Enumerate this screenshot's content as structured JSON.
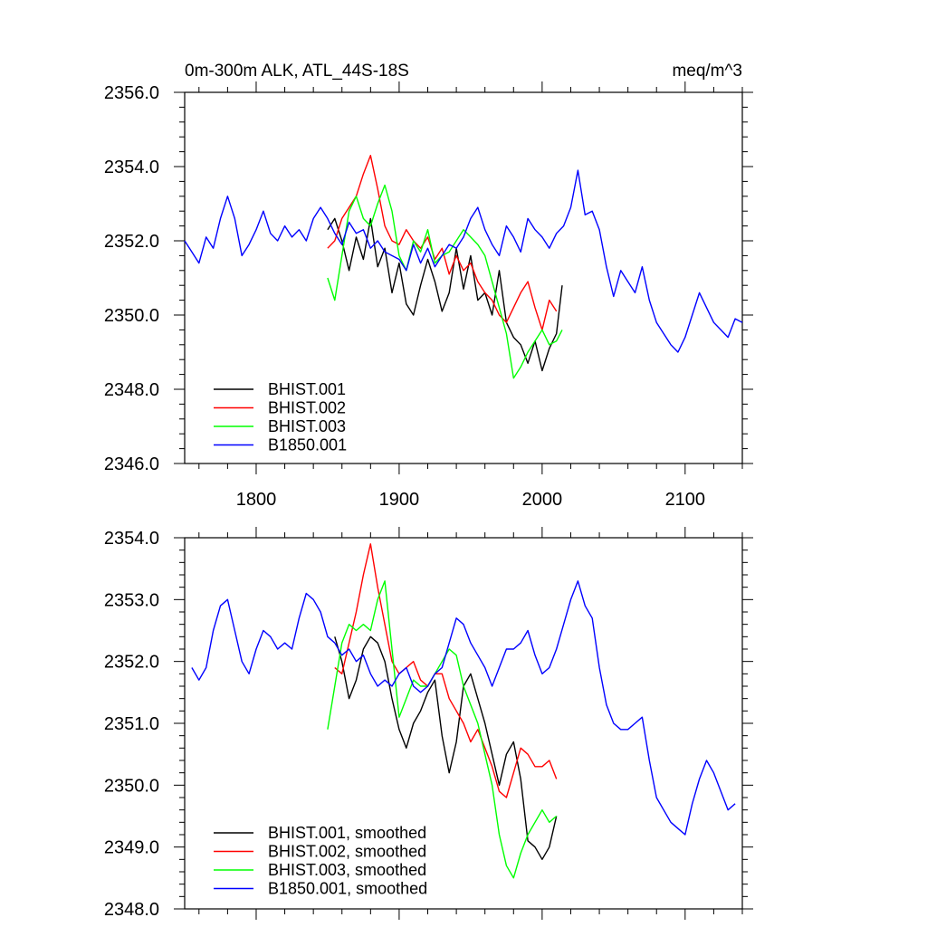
{
  "chart_data": [
    {
      "type": "line",
      "title": "0m-300m ALK, ATL_44S-18S",
      "units": "meq/m^3",
      "xlim": [
        1750,
        2140
      ],
      "ylim": [
        2346,
        2356
      ],
      "yticks": [
        2346,
        2348,
        2350,
        2352,
        2354,
        2356
      ],
      "ytick_labels": [
        "2346.0",
        "2348.0",
        "2350.0",
        "2352.0",
        "2354.0",
        "2356.0"
      ],
      "xticks": [
        1800,
        1900,
        2000,
        2100
      ],
      "xtick_labels": [
        "1800",
        "1900",
        "2000",
        "2100"
      ],
      "grid": false,
      "legend_position": "bottom-left",
      "series": [
        {
          "name": "BHIST.001",
          "color": "#000000",
          "x": [
            1850,
            1855,
            1860,
            1865,
            1870,
            1875,
            1880,
            1885,
            1890,
            1895,
            1900,
            1905,
            1910,
            1915,
            1920,
            1925,
            1930,
            1935,
            1940,
            1945,
            1950,
            1955,
            1960,
            1965,
            1970,
            1975,
            1980,
            1985,
            1990,
            1995,
            2000,
            2005,
            2010,
            2014
          ],
          "y": [
            2352.3,
            2352.6,
            2352.0,
            2351.2,
            2352.1,
            2351.5,
            2352.6,
            2351.3,
            2351.8,
            2350.6,
            2351.4,
            2350.3,
            2350.0,
            2350.8,
            2351.5,
            2350.9,
            2350.1,
            2350.6,
            2351.8,
            2350.7,
            2351.6,
            2350.4,
            2350.6,
            2350.0,
            2351.2,
            2349.8,
            2349.4,
            2349.2,
            2348.7,
            2349.3,
            2348.5,
            2349.1,
            2349.5,
            2350.8
          ]
        },
        {
          "name": "BHIST.002",
          "color": "#ff0000",
          "x": [
            1850,
            1855,
            1860,
            1865,
            1870,
            1875,
            1880,
            1885,
            1890,
            1895,
            1900,
            1905,
            1910,
            1915,
            1920,
            1925,
            1930,
            1935,
            1940,
            1945,
            1950,
            1955,
            1960,
            1965,
            1970,
            1975,
            1980,
            1985,
            1990,
            1995,
            2000,
            2005,
            2010
          ],
          "y": [
            2351.8,
            2352.0,
            2352.6,
            2352.9,
            2353.2,
            2353.8,
            2354.3,
            2353.4,
            2352.4,
            2352.0,
            2351.9,
            2352.3,
            2352.0,
            2351.8,
            2352.1,
            2351.5,
            2351.8,
            2351.1,
            2351.6,
            2351.2,
            2351.4,
            2350.9,
            2350.6,
            2350.4,
            2350.0,
            2349.8,
            2350.2,
            2350.6,
            2350.9,
            2350.2,
            2349.6,
            2350.4,
            2350.1
          ]
        },
        {
          "name": "BHIST.003",
          "color": "#00ff00",
          "x": [
            1850,
            1855,
            1860,
            1865,
            1870,
            1875,
            1880,
            1885,
            1890,
            1895,
            1900,
            1905,
            1910,
            1915,
            1920,
            1925,
            1930,
            1935,
            1940,
            1945,
            1950,
            1955,
            1960,
            1965,
            1970,
            1975,
            1980,
            1985,
            1990,
            1995,
            2000,
            2005,
            2010,
            2014
          ],
          "y": [
            2351.0,
            2350.4,
            2351.6,
            2352.8,
            2353.2,
            2352.6,
            2352.4,
            2353.0,
            2353.5,
            2352.8,
            2351.6,
            2351.2,
            2352.0,
            2351.7,
            2352.3,
            2351.4,
            2351.6,
            2351.7,
            2352.0,
            2352.3,
            2352.1,
            2351.9,
            2351.6,
            2350.9,
            2350.2,
            2349.5,
            2348.3,
            2348.6,
            2349.0,
            2349.3,
            2349.6,
            2349.2,
            2349.3,
            2349.6
          ]
        },
        {
          "name": "B1850.001",
          "color": "#0000ff",
          "x": [
            1750,
            1755,
            1760,
            1765,
            1770,
            1775,
            1780,
            1785,
            1790,
            1795,
            1800,
            1805,
            1810,
            1815,
            1820,
            1825,
            1830,
            1835,
            1840,
            1845,
            1850,
            1855,
            1860,
            1865,
            1870,
            1875,
            1880,
            1885,
            1890,
            1895,
            1900,
            1905,
            1910,
            1915,
            1920,
            1925,
            1930,
            1935,
            1940,
            1945,
            1950,
            1955,
            1960,
            1965,
            1970,
            1975,
            1980,
            1985,
            1990,
            1995,
            2000,
            2005,
            2010,
            2015,
            2020,
            2025,
            2030,
            2035,
            2040,
            2045,
            2050,
            2055,
            2060,
            2065,
            2070,
            2075,
            2080,
            2085,
            2090,
            2095,
            2100,
            2105,
            2110,
            2115,
            2120,
            2125,
            2130,
            2135,
            2140
          ],
          "y": [
            2352.0,
            2351.7,
            2351.4,
            2352.1,
            2351.8,
            2352.6,
            2353.2,
            2352.6,
            2351.6,
            2351.9,
            2352.3,
            2352.8,
            2352.2,
            2352.0,
            2352.4,
            2352.1,
            2352.3,
            2352.0,
            2352.6,
            2352.9,
            2352.6,
            2352.2,
            2351.9,
            2352.5,
            2352.2,
            2352.3,
            2351.8,
            2352.0,
            2351.7,
            2351.6,
            2351.5,
            2351.2,
            2351.9,
            2351.4,
            2351.8,
            2351.3,
            2351.6,
            2351.9,
            2351.8,
            2352.1,
            2352.6,
            2352.9,
            2352.3,
            2351.9,
            2351.6,
            2352.4,
            2352.1,
            2351.7,
            2352.6,
            2352.3,
            2352.1,
            2351.8,
            2352.2,
            2352.4,
            2352.9,
            2353.9,
            2352.7,
            2352.8,
            2352.3,
            2351.3,
            2350.5,
            2351.2,
            2350.9,
            2350.6,
            2351.3,
            2350.4,
            2349.8,
            2349.5,
            2349.2,
            2349.0,
            2349.4,
            2350.0,
            2350.6,
            2350.2,
            2349.8,
            2349.6,
            2349.4,
            2349.9,
            2349.8
          ]
        }
      ]
    },
    {
      "type": "line",
      "title": "",
      "units": "",
      "xlim": [
        1750,
        2140
      ],
      "ylim": [
        2348,
        2354
      ],
      "yticks": [
        2348,
        2349,
        2350,
        2351,
        2352,
        2353,
        2354
      ],
      "ytick_labels": [
        "2348.0",
        "2349.0",
        "2350.0",
        "2351.0",
        "2352.0",
        "2353.0",
        "2354.0"
      ],
      "xticks": [
        1800,
        1900,
        2000,
        2100
      ],
      "xtick_labels": [],
      "grid": false,
      "legend_position": "bottom-left",
      "series": [
        {
          "name": "BHIST.001, smoothed",
          "color": "#000000",
          "x": [
            1855,
            1860,
            1865,
            1870,
            1875,
            1880,
            1885,
            1890,
            1895,
            1900,
            1905,
            1910,
            1915,
            1920,
            1925,
            1930,
            1935,
            1940,
            1945,
            1950,
            1955,
            1960,
            1965,
            1970,
            1975,
            1980,
            1985,
            1990,
            1995,
            2000,
            2005,
            2010
          ],
          "y": [
            2352.4,
            2352.0,
            2351.4,
            2351.7,
            2352.2,
            2352.4,
            2352.3,
            2352.0,
            2351.4,
            2350.9,
            2350.6,
            2351.0,
            2351.2,
            2351.5,
            2351.7,
            2350.8,
            2350.2,
            2350.7,
            2351.6,
            2351.8,
            2351.4,
            2351.0,
            2350.5,
            2350.0,
            2350.5,
            2350.7,
            2350.1,
            2349.1,
            2349.0,
            2348.8,
            2349.0,
            2349.5
          ]
        },
        {
          "name": "BHIST.002, smoothed",
          "color": "#ff0000",
          "x": [
            1855,
            1860,
            1865,
            1870,
            1875,
            1880,
            1885,
            1890,
            1895,
            1900,
            1905,
            1910,
            1915,
            1920,
            1925,
            1930,
            1935,
            1940,
            1945,
            1950,
            1955,
            1960,
            1965,
            1970,
            1975,
            1980,
            1985,
            1990,
            1995,
            2000,
            2005,
            2010
          ],
          "y": [
            2351.9,
            2351.8,
            2352.3,
            2352.8,
            2353.4,
            2353.9,
            2353.2,
            2352.6,
            2352.0,
            2351.8,
            2351.9,
            2352.0,
            2351.7,
            2351.6,
            2351.8,
            2351.8,
            2351.4,
            2351.2,
            2351.0,
            2350.7,
            2350.9,
            2350.6,
            2350.3,
            2349.9,
            2349.8,
            2350.2,
            2350.6,
            2350.5,
            2350.3,
            2350.3,
            2350.4,
            2350.1
          ]
        },
        {
          "name": "BHIST.003, smoothed",
          "color": "#00ff00",
          "x": [
            1850,
            1855,
            1860,
            1865,
            1870,
            1875,
            1880,
            1885,
            1890,
            1895,
            1900,
            1905,
            1910,
            1915,
            1920,
            1925,
            1930,
            1935,
            1940,
            1945,
            1950,
            1955,
            1960,
            1965,
            1970,
            1975,
            1980,
            1985,
            1990,
            1995,
            2000,
            2005,
            2010
          ],
          "y": [
            2350.9,
            2351.6,
            2352.3,
            2352.6,
            2352.5,
            2352.6,
            2352.5,
            2353.0,
            2353.3,
            2352.2,
            2351.1,
            2351.4,
            2351.7,
            2351.6,
            2351.6,
            2351.8,
            2352.0,
            2352.2,
            2352.1,
            2351.6,
            2351.3,
            2351.0,
            2350.5,
            2350.0,
            2349.2,
            2348.7,
            2348.5,
            2348.9,
            2349.2,
            2349.4,
            2349.6,
            2349.4,
            2349.5
          ]
        },
        {
          "name": "B1850.001, smoothed",
          "color": "#0000ff",
          "x": [
            1755,
            1760,
            1765,
            1770,
            1775,
            1780,
            1785,
            1790,
            1795,
            1800,
            1805,
            1810,
            1815,
            1820,
            1825,
            1830,
            1835,
            1840,
            1845,
            1850,
            1855,
            1860,
            1865,
            1870,
            1875,
            1880,
            1885,
            1890,
            1895,
            1900,
            1905,
            1910,
            1915,
            1920,
            1925,
            1930,
            1935,
            1940,
            1945,
            1950,
            1955,
            1960,
            1965,
            1970,
            1975,
            1980,
            1985,
            1990,
            1995,
            2000,
            2005,
            2010,
            2015,
            2020,
            2025,
            2030,
            2035,
            2040,
            2045,
            2050,
            2055,
            2060,
            2065,
            2070,
            2075,
            2080,
            2085,
            2090,
            2095,
            2100,
            2105,
            2110,
            2115,
            2120,
            2125,
            2130,
            2135
          ],
          "y": [
            2351.9,
            2351.7,
            2351.9,
            2352.5,
            2352.9,
            2353.0,
            2352.5,
            2352.0,
            2351.8,
            2352.2,
            2352.5,
            2352.4,
            2352.2,
            2352.3,
            2352.2,
            2352.7,
            2353.1,
            2353.0,
            2352.8,
            2352.4,
            2352.3,
            2352.1,
            2352.2,
            2352.0,
            2352.1,
            2351.8,
            2351.6,
            2351.7,
            2351.6,
            2351.8,
            2351.9,
            2351.6,
            2351.5,
            2351.6,
            2351.8,
            2351.9,
            2352.3,
            2352.7,
            2352.6,
            2352.3,
            2352.1,
            2351.9,
            2351.6,
            2351.9,
            2352.2,
            2352.2,
            2352.3,
            2352.5,
            2352.1,
            2351.8,
            2351.9,
            2352.2,
            2352.6,
            2353.0,
            2353.3,
            2352.9,
            2352.7,
            2351.9,
            2351.3,
            2351.0,
            2350.9,
            2350.9,
            2351.0,
            2351.1,
            2350.4,
            2349.8,
            2349.6,
            2349.4,
            2349.3,
            2349.2,
            2349.7,
            2350.1,
            2350.4,
            2350.2,
            2349.9,
            2349.6,
            2349.7
          ]
        }
      ]
    }
  ]
}
